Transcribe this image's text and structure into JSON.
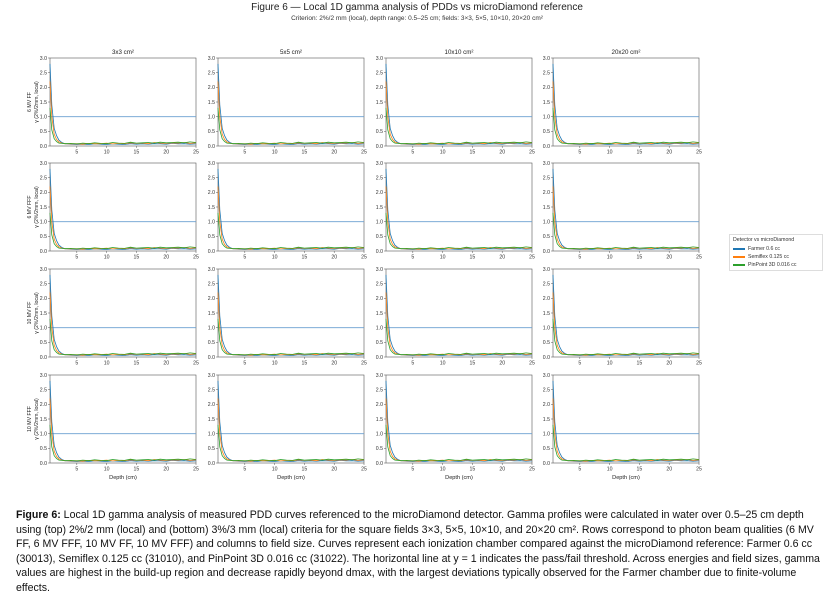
{
  "figure": {
    "title": "Figure 6 — Local 1D gamma analysis of PDDs vs microDiamond reference",
    "subtitle": "Criterion: 2%/2 mm (local), depth range: 0.5–25 cm; fields: 3×3, 5×5, 10×10, 20×20 cm²"
  },
  "chart_data": {
    "type": "line",
    "layout": "grid 4 rows × 4 columns",
    "columns": [
      "3x3 cm²",
      "5x5 cm²",
      "10x10 cm²",
      "20x20 cm²"
    ],
    "row_ylabels": [
      [
        "6 MV FF",
        "γ (2%/2mm, local)"
      ],
      [
        "6 MV FFF",
        "γ (2%/2mm, local)"
      ],
      [
        "10 MV FF",
        "γ (2%/2mm, local)"
      ],
      [
        "10 MV FFF",
        "γ (2%/2mm, local)"
      ]
    ],
    "xlabel": "Depth (cm)",
    "xlim": [
      0.5,
      25
    ],
    "ylim": [
      0,
      3.0
    ],
    "xticks": [
      5,
      10,
      15,
      20,
      25
    ],
    "yticks": [
      0.0,
      0.5,
      1.0,
      1.5,
      2.0,
      2.5,
      3.0
    ],
    "xtick_labels": [
      "5",
      "10",
      "15",
      "20",
      "25"
    ],
    "ytick_labels": [
      "0.0",
      "0.5",
      "1.0",
      "1.5",
      "2.0",
      "2.5",
      "3.0"
    ],
    "threshold": {
      "y": 1.0,
      "color": "#6a9fd0"
    },
    "legend": {
      "title": "Detector vs microDiamond",
      "placement": "right",
      "entries": [
        "Farmer 0.6 cc",
        "Semiflex 0.125 cc",
        "PinPoint 3D 0.016 cc"
      ]
    },
    "colors": {
      "Farmer 0.6 cc": "#1f77b4",
      "Semiflex 0.125 cc": "#ff7f0e",
      "PinPoint 3D 0.016 cc": "#2ca02c"
    },
    "x": [
      0.5,
      0.8,
      1.2,
      1.6,
      2.0,
      2.5,
      3.0,
      4.0,
      5.0,
      6.0,
      7.0,
      8.0,
      9.0,
      10.0,
      11.0,
      12.0,
      13.0,
      14.0,
      15.0,
      16.0,
      17.0,
      18.0,
      19.0,
      20.0,
      21.0,
      22.0,
      23.0,
      24.0,
      25.0
    ],
    "series": [
      {
        "name": "Farmer 0.6 cc",
        "values": [
          2.8,
          1.4,
          0.6,
          0.35,
          0.2,
          0.12,
          0.08,
          0.06,
          0.05,
          0.06,
          0.05,
          0.07,
          0.06,
          0.05,
          0.07,
          0.06,
          0.05,
          0.08,
          0.06,
          0.07,
          0.06,
          0.08,
          0.07,
          0.06,
          0.09,
          0.07,
          0.08,
          0.06,
          0.07
        ]
      },
      {
        "name": "Semiflex 0.125 cc",
        "values": [
          2.2,
          1.0,
          0.4,
          0.22,
          0.14,
          0.1,
          0.08,
          0.07,
          0.08,
          0.06,
          0.09,
          0.07,
          0.08,
          0.1,
          0.07,
          0.09,
          0.08,
          0.11,
          0.09,
          0.1,
          0.08,
          0.12,
          0.1,
          0.09,
          0.11,
          0.1,
          0.12,
          0.09,
          0.11
        ]
      },
      {
        "name": "PinPoint 3D 0.016 cc",
        "values": [
          1.3,
          0.55,
          0.25,
          0.15,
          0.1,
          0.09,
          0.08,
          0.09,
          0.07,
          0.1,
          0.08,
          0.11,
          0.09,
          0.08,
          0.12,
          0.1,
          0.09,
          0.13,
          0.1,
          0.11,
          0.12,
          0.1,
          0.13,
          0.11,
          0.12,
          0.13,
          0.11,
          0.14,
          0.12
        ]
      }
    ]
  },
  "caption": {
    "label": "Figure 6:",
    "text": " Local 1D gamma analysis of measured PDD curves referenced to the microDiamond detector. Gamma profiles were calculated in water over 0.5–25 cm depth using (top) 2%/2 mm (local) and (bottom) 3%/3 mm (local) criteria for the square fields 3×3, 5×5, 10×10, and 20×20 cm². Rows correspond to photon beam qualities (6 MV FF, 6 MV FFF, 10 MV FF, 10 MV FFF) and columns to field size. Curves represent each ionization chamber compared against the microDiamond reference: Farmer 0.6 cc (30013), Semiflex 0.125 cc (31010), and PinPoint 3D 0.016 cc (31022). The horizontal line at y = 1 indicates the pass/fail threshold. Across energies and field sizes, gamma values are highest in the build-up region and decrease rapidly beyond dmax, with the largest deviations typically observed for the Farmer chamber due to finite-volume effects."
  }
}
